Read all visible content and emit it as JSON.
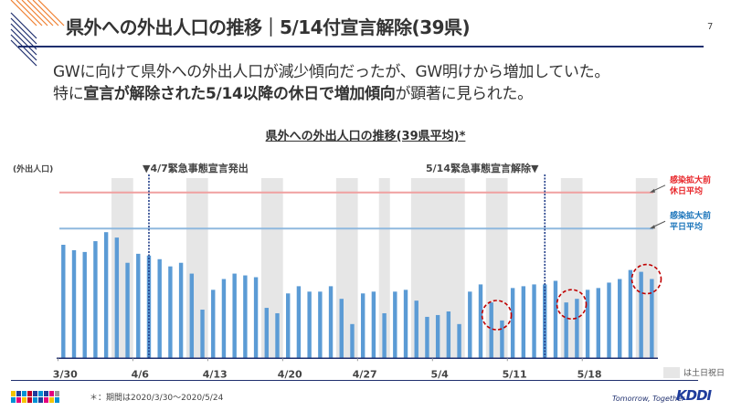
{
  "header": {
    "title": "県外への外出人口の推移｜5/14付宣言解除(39県)",
    "page_number": "7"
  },
  "lead": {
    "line1": "GWに向けて県外への外出人口が減少傾向だったが、GW明けから増加していた。",
    "line2_parts": [
      {
        "text": "特に",
        "bold": false
      },
      {
        "text": "宣言が解除された5/14以降の休日で増加傾向",
        "bold": true
      },
      {
        "text": "が顕著に見られた。",
        "bold": false
      }
    ]
  },
  "chart_data": {
    "type": "bar",
    "title": "県外への外出人口の推移(39県平均)*",
    "ylabel": "(外出人口)",
    "xlabel": "",
    "y_tick_labels_shown": false,
    "ylim": [
      0,
      100
    ],
    "x": [
      "3/30",
      "3/31",
      "4/1",
      "4/2",
      "4/3",
      "4/4",
      "4/5",
      "4/6",
      "4/7",
      "4/8",
      "4/9",
      "4/10",
      "4/11",
      "4/12",
      "4/13",
      "4/14",
      "4/15",
      "4/16",
      "4/17",
      "4/18",
      "4/19",
      "4/20",
      "4/21",
      "4/22",
      "4/23",
      "4/24",
      "4/25",
      "4/26",
      "4/27",
      "4/28",
      "4/29",
      "4/30",
      "5/1",
      "5/2",
      "5/3",
      "5/4",
      "5/5",
      "5/6",
      "5/7",
      "5/8",
      "5/9",
      "5/10",
      "5/11",
      "5/12",
      "5/13",
      "5/14",
      "5/15",
      "5/16",
      "5/17",
      "5/18",
      "5/19",
      "5/20",
      "5/21",
      "5/22",
      "5/23",
      "5/24"
    ],
    "values": [
      63,
      60,
      59,
      65,
      70,
      67,
      53,
      58,
      57,
      55,
      51,
      53,
      47,
      27,
      38,
      44,
      47,
      46,
      45,
      28,
      25,
      36,
      40,
      37,
      37,
      40,
      33,
      19,
      36,
      37,
      25,
      37,
      38,
      32,
      23,
      24,
      26,
      19,
      37,
      41,
      31,
      21,
      39,
      40,
      41,
      41,
      43,
      31,
      33,
      38,
      39,
      42,
      44,
      49,
      48,
      44
    ],
    "holidays": [
      "4/4",
      "4/5",
      "4/11",
      "4/12",
      "4/18",
      "4/19",
      "4/25",
      "4/26",
      "4/29",
      "5/2",
      "5/3",
      "5/4",
      "5/5",
      "5/6",
      "5/9",
      "5/10",
      "5/16",
      "5/17",
      "5/23",
      "5/24"
    ],
    "x_tick_labels": [
      "3/30",
      "4/6",
      "4/13",
      "4/20",
      "4/27",
      "5/4",
      "5/11",
      "5/18"
    ],
    "reference_lines": [
      {
        "label": "感染拡大前休日平均",
        "label_line1": "感染拡大前",
        "label_line2": "休日平均",
        "value": 92,
        "color": "#e8262a",
        "line_color": "#f0a0a0"
      },
      {
        "label": "感染拡大前平日平均",
        "label_line1": "感染拡大前",
        "label_line2": "平日平均",
        "value": 72,
        "color": "#1b75bb",
        "line_color": "#8fb8de"
      }
    ],
    "events": [
      {
        "date": "4/7",
        "label": "▼4/7緊急事態宣言発出"
      },
      {
        "date": "5/14",
        "label": "5/14緊急事態宣言解除▼"
      }
    ],
    "highlighted_weekends": [
      [
        "5/9",
        "5/10"
      ],
      [
        "5/16",
        "5/17"
      ],
      [
        "5/23",
        "5/24"
      ]
    ],
    "legend": {
      "holiday_label": "は土日祝日"
    },
    "colors": {
      "bar": "#5b9bd5",
      "holiday_band": "#e6e6e6",
      "event_line": "#1f3c88",
      "highlight_circle": "#c00000"
    }
  },
  "footer": {
    "footnote": "＊：期間は2020/3/30～2020/5/24",
    "tagline": "Tomorrow, Together",
    "brand": "KDDI"
  }
}
